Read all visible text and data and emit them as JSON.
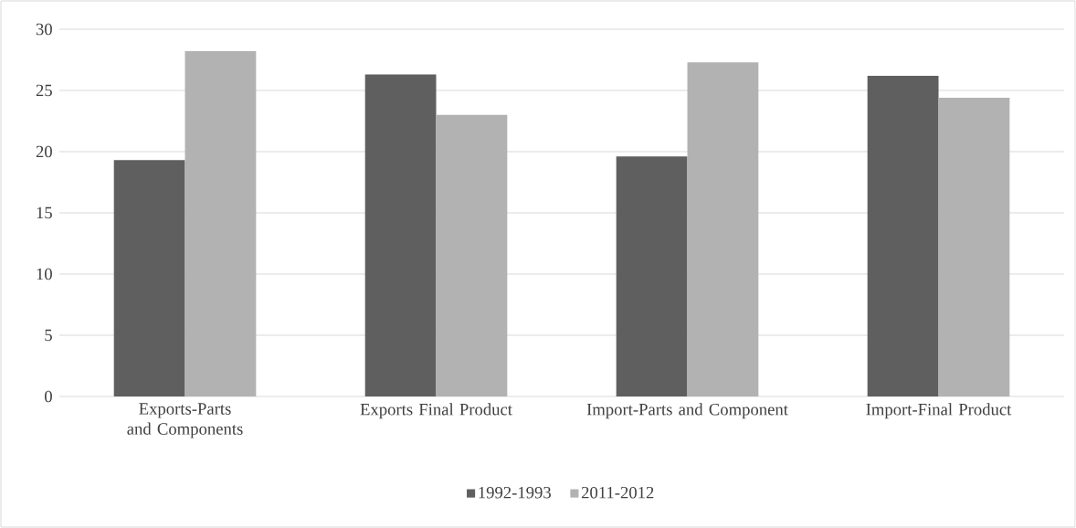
{
  "chart_data": {
    "type": "bar",
    "categories": [
      "Exports-Parts and Components",
      "Exports Final Product",
      "Import-Parts and Component",
      "Import-Final Product"
    ],
    "series": [
      {
        "name": "1992-1993",
        "color": "#5f5f5f",
        "values": [
          19.3,
          26.3,
          19.6,
          26.2
        ]
      },
      {
        "name": "2011-2012",
        "color": "#b2b2b2",
        "values": [
          28.2,
          23.0,
          27.3,
          24.4
        ]
      }
    ],
    "ylim": [
      0,
      30
    ],
    "yticks": [
      0,
      5,
      10,
      15,
      20,
      25,
      30
    ],
    "grid": "y",
    "legend": "bottom"
  }
}
